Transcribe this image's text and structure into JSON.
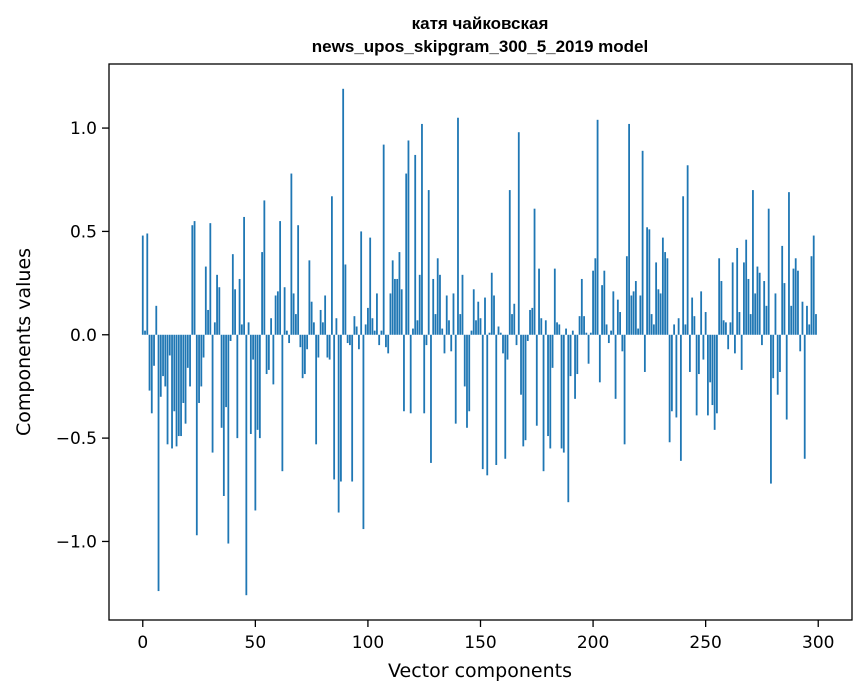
{
  "chart_data": {
    "type": "bar",
    "title": "катя чайковская",
    "subtitle": "news_upos_skipgram_300_5_2019 model",
    "xlabel": "Vector components",
    "ylabel": "Components values",
    "xlim": [
      -15,
      315
    ],
    "ylim": [
      -1.38,
      1.31
    ],
    "xticks": [
      0,
      50,
      100,
      150,
      200,
      250,
      300
    ],
    "xtick_labels": [
      "0",
      "50",
      "100",
      "150",
      "200",
      "250",
      "300"
    ],
    "yticks": [
      -1.0,
      -0.5,
      0.0,
      0.5,
      1.0
    ],
    "ytick_labels": [
      "−1.0",
      "−0.5",
      "0.0",
      "0.5",
      "1.0"
    ],
    "bar_color": "#1f77b4",
    "grid": false,
    "values": [
      0.48,
      0.02,
      0.49,
      -0.27,
      -0.38,
      -0.15,
      0.14,
      -1.24,
      -0.3,
      -0.2,
      -0.25,
      -0.53,
      -0.1,
      -0.55,
      -0.37,
      -0.54,
      -0.49,
      -0.49,
      -0.33,
      -0.43,
      -0.16,
      -0.25,
      0.53,
      0.55,
      -0.97,
      -0.33,
      -0.25,
      -0.11,
      0.33,
      0.12,
      0.54,
      -0.57,
      0.06,
      0.29,
      0.23,
      -0.45,
      -0.78,
      -0.35,
      -1.01,
      -0.03,
      0.39,
      0.22,
      -0.5,
      0.27,
      0.05,
      0.57,
      -1.26,
      0.06,
      -0.48,
      -0.12,
      -0.85,
      -0.46,
      -0.5,
      0.4,
      0.65,
      -0.19,
      -0.17,
      0.08,
      -0.24,
      0.19,
      0.21,
      0.55,
      -0.66,
      0.23,
      0.02,
      -0.04,
      0.78,
      0.2,
      0.1,
      0.53,
      -0.06,
      -0.21,
      -0.19,
      -0.07,
      0.36,
      0.16,
      0.06,
      -0.53,
      -0.11,
      0.12,
      0.06,
      0.19,
      -0.11,
      -0.12,
      0.67,
      -0.7,
      0.08,
      -0.86,
      -0.71,
      1.19,
      0.34,
      -0.04,
      -0.05,
      -0.71,
      0.09,
      0.04,
      -0.07,
      0.5,
      -0.94,
      0.05,
      0.13,
      0.47,
      0.08,
      0.02,
      0.2,
      -0.05,
      0.02,
      0.92,
      -0.06,
      -0.09,
      0.2,
      0.36,
      0.27,
      0.27,
      0.4,
      0.22,
      -0.37,
      0.78,
      0.94,
      -0.38,
      0.03,
      0.87,
      0.07,
      0.29,
      1.02,
      -0.38,
      -0.05,
      0.7,
      -0.62,
      0.27,
      0.1,
      0.37,
      0.29,
      0.03,
      -0.09,
      0.19,
      0.07,
      -0.08,
      0.2,
      -0.43,
      1.05,
      0.1,
      0.29,
      -0.25,
      -0.45,
      -0.37,
      0.02,
      0.22,
      0.07,
      0.16,
      0.08,
      -0.65,
      0.18,
      -0.68,
      0.01,
      0.3,
      0.19,
      -0.63,
      0.04,
      0.01,
      -0.09,
      -0.6,
      -0.12,
      0.7,
      0.1,
      0.15,
      -0.05,
      0.98,
      -0.29,
      -0.54,
      -0.51,
      -0.03,
      0.12,
      0.13,
      0.61,
      -0.44,
      0.32,
      0.08,
      -0.66,
      0.07,
      -0.49,
      -0.55,
      -0.16,
      0.32,
      0.06,
      0.05,
      -0.55,
      -0.57,
      0.03,
      -0.81,
      -0.2,
      0.02,
      -0.31,
      -0.19,
      0.09,
      0.27,
      0.09,
      0.01,
      -0.14,
      0.01,
      0.31,
      0.37,
      1.04,
      -0.23,
      0.24,
      0.31,
      0.05,
      -0.04,
      0.02,
      0.21,
      -0.31,
      0.17,
      0.11,
      -0.08,
      -0.53,
      0.38,
      1.02,
      0.19,
      0.21,
      0.26,
      0.03,
      0.19,
      0.89,
      -0.18,
      0.52,
      0.51,
      0.1,
      0.05,
      0.35,
      0.22,
      0.2,
      0.47,
      0.4,
      0.37,
      -0.52,
      -0.37,
      0.05,
      -0.4,
      0.08,
      -0.61,
      0.67,
      0.05,
      0.82,
      -0.18,
      0.18,
      0.09,
      -0.39,
      -0.19,
      0.21,
      -0.12,
      0.11,
      -0.39,
      -0.23,
      -0.34,
      -0.46,
      -0.38,
      0.37,
      0.26,
      0.07,
      0.06,
      -0.07,
      0.06,
      0.35,
      -0.09,
      0.42,
      0.11,
      -0.17,
      0.35,
      0.46,
      0.27,
      0.1,
      0.7,
      0.2,
      0.33,
      0.3,
      -0.05,
      0.26,
      0.14,
      0.61,
      -0.72,
      -0.21,
      0.2,
      -0.29,
      -0.18,
      0.43,
      0.25,
      -0.41,
      0.69,
      0.14,
      0.32,
      0.37,
      0.31,
      -0.08,
      0.16,
      -0.6,
      0.14,
      0.05,
      0.38,
      0.48,
      0.1
    ]
  }
}
